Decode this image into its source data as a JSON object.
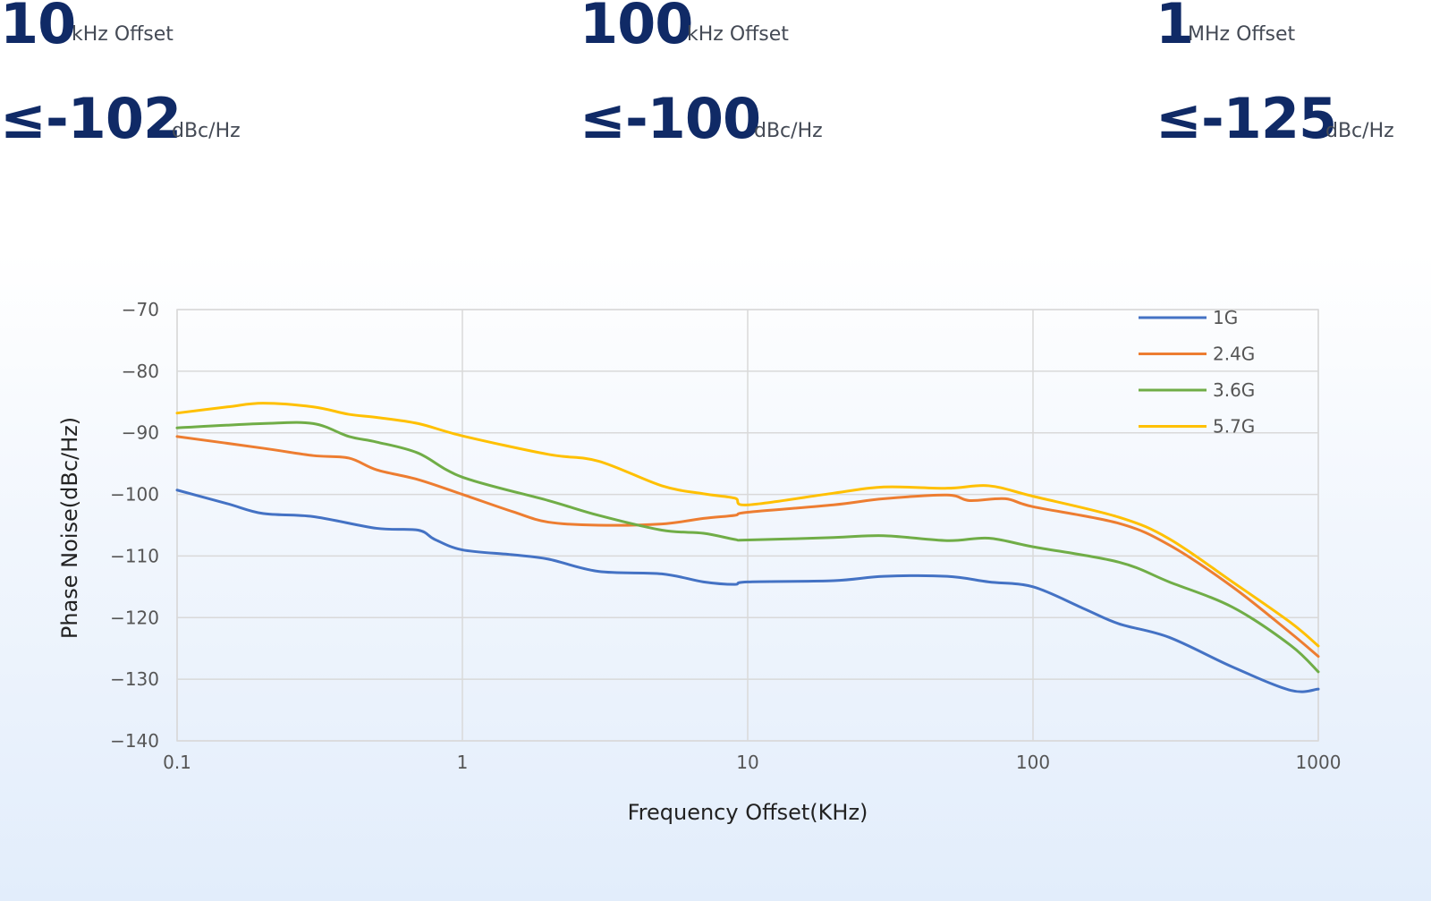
{
  "specs": [
    {
      "offset_value": "10",
      "offset_unit": "kHz Offset",
      "noise_value": "≤-102",
      "noise_unit": "dBc/Hz"
    },
    {
      "offset_value": "100",
      "offset_unit": "kHz Offset",
      "noise_value": "≤-100",
      "noise_unit": "dBc/Hz"
    },
    {
      "offset_value": "1",
      "offset_unit": "MHz Offset",
      "noise_value": "≤-125",
      "noise_unit": "dBc/Hz"
    }
  ],
  "chart_data": {
    "type": "line",
    "xlabel": "Frequency Offset(KHz)",
    "ylabel": "Phase Noise(dBc/Hz)",
    "x_scale": "log",
    "xlim": [
      0.1,
      1000
    ],
    "ylim": [
      -140,
      -70
    ],
    "x_ticks": [
      0.1,
      1,
      10,
      100,
      1000
    ],
    "x_tick_labels": [
      "0.1",
      "1",
      "10",
      "100",
      "1000"
    ],
    "y_ticks": [
      -70,
      -80,
      -90,
      -100,
      -110,
      -120,
      -130,
      -140
    ],
    "grid": true,
    "legend_position": "top-right",
    "series": [
      {
        "name": "1G",
        "color": "#4472c4",
        "points": [
          [
            0.1,
            -99.3
          ],
          [
            0.15,
            -101.5
          ],
          [
            0.2,
            -103.1
          ],
          [
            0.3,
            -103.6
          ],
          [
            0.5,
            -105.5
          ],
          [
            0.7,
            -105.8
          ],
          [
            0.8,
            -107.3
          ],
          [
            1,
            -109
          ],
          [
            1.5,
            -109.8
          ],
          [
            2,
            -110.5
          ],
          [
            3,
            -112.5
          ],
          [
            5,
            -112.9
          ],
          [
            7,
            -114.2
          ],
          [
            9,
            -114.6
          ],
          [
            10,
            -114.2
          ],
          [
            20,
            -114
          ],
          [
            30,
            -113.3
          ],
          [
            50,
            -113.3
          ],
          [
            70,
            -114.2
          ],
          [
            100,
            -115
          ],
          [
            150,
            -118.5
          ],
          [
            200,
            -121
          ],
          [
            300,
            -123.2
          ],
          [
            500,
            -128
          ],
          [
            800,
            -131.8
          ],
          [
            1000,
            -131.6
          ]
        ]
      },
      {
        "name": "2.4G",
        "color": "#ed7d31",
        "points": [
          [
            0.1,
            -90.6
          ],
          [
            0.2,
            -92.5
          ],
          [
            0.3,
            -93.7
          ],
          [
            0.4,
            -94.1
          ],
          [
            0.5,
            -96
          ],
          [
            0.7,
            -97.6
          ],
          [
            1,
            -100
          ],
          [
            1.5,
            -102.8
          ],
          [
            2,
            -104.5
          ],
          [
            3,
            -105
          ],
          [
            5,
            -104.8
          ],
          [
            7,
            -103.9
          ],
          [
            9,
            -103.4
          ],
          [
            10,
            -102.9
          ],
          [
            20,
            -101.7
          ],
          [
            30,
            -100.7
          ],
          [
            50,
            -100.1
          ],
          [
            60,
            -101
          ],
          [
            80,
            -100.7
          ],
          [
            100,
            -102
          ],
          [
            200,
            -104.7
          ],
          [
            300,
            -108.2
          ],
          [
            500,
            -115
          ],
          [
            800,
            -122.5
          ],
          [
            1000,
            -126.3
          ]
        ]
      },
      {
        "name": "3.6G",
        "color": "#70ad47",
        "points": [
          [
            0.1,
            -89.2
          ],
          [
            0.2,
            -88.5
          ],
          [
            0.3,
            -88.5
          ],
          [
            0.4,
            -90.6
          ],
          [
            0.5,
            -91.5
          ],
          [
            0.7,
            -93.3
          ],
          [
            1,
            -97.2
          ],
          [
            2,
            -101
          ],
          [
            3,
            -103.4
          ],
          [
            5,
            -105.8
          ],
          [
            7,
            -106.3
          ],
          [
            9,
            -107.3
          ],
          [
            10,
            -107.4
          ],
          [
            20,
            -107
          ],
          [
            30,
            -106.7
          ],
          [
            50,
            -107.5
          ],
          [
            70,
            -107.1
          ],
          [
            100,
            -108.5
          ],
          [
            200,
            -111
          ],
          [
            300,
            -114.2
          ],
          [
            500,
            -118.3
          ],
          [
            800,
            -124.5
          ],
          [
            1000,
            -128.8
          ]
        ]
      },
      {
        "name": "5.7G",
        "color": "#ffc000",
        "points": [
          [
            0.1,
            -86.8
          ],
          [
            0.15,
            -85.8
          ],
          [
            0.2,
            -85.2
          ],
          [
            0.3,
            -85.8
          ],
          [
            0.4,
            -87
          ],
          [
            0.5,
            -87.5
          ],
          [
            0.7,
            -88.5
          ],
          [
            1,
            -90.5
          ],
          [
            2,
            -93.5
          ],
          [
            3,
            -94.6
          ],
          [
            5,
            -98.6
          ],
          [
            7,
            -99.9
          ],
          [
            9,
            -100.6
          ],
          [
            10,
            -101.7
          ],
          [
            20,
            -99.8
          ],
          [
            30,
            -98.8
          ],
          [
            50,
            -99
          ],
          [
            70,
            -98.6
          ],
          [
            100,
            -100.3
          ],
          [
            200,
            -103.7
          ],
          [
            300,
            -107.2
          ],
          [
            500,
            -114.2
          ],
          [
            800,
            -120.8
          ],
          [
            1000,
            -124.6
          ]
        ]
      }
    ]
  }
}
